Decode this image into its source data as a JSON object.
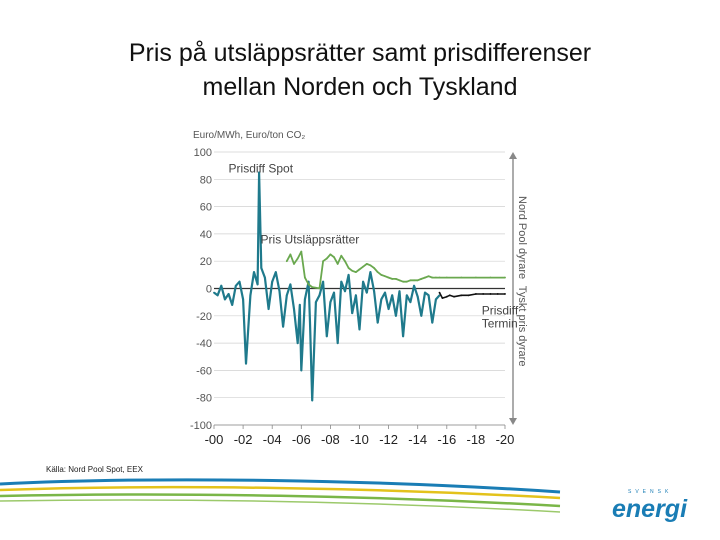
{
  "slide": {
    "title_line1": "Pris på utsläppsrätter samt prisdifferenser",
    "title_line2": "mellan Norden och Tyskland",
    "source": "Källa: Nord Pool Spot, EEX",
    "logo_top": "SVENSK",
    "logo_bottom": "energi"
  },
  "chart_data": {
    "type": "line",
    "ylabel": "Euro/MWh, Euro/ton CO₂",
    "ylim": [
      -100,
      100
    ],
    "xlim": [
      0,
      20
    ],
    "yticks": [
      100,
      80,
      60,
      40,
      20,
      0,
      -20,
      -40,
      -60,
      -80,
      -100
    ],
    "xticks": [
      "-00",
      "-02",
      "-04",
      "-06",
      "-08",
      "-10",
      "-12",
      "-14",
      "-16",
      "-18",
      "-20"
    ],
    "right_label_top": "Nord Pool dyrare",
    "right_label_bottom": "Tyskt pris dyrare",
    "grid": true,
    "colors": {
      "spot": "#1f7a8c",
      "co2": "#6aa84f",
      "termin": "#111111",
      "grid": "#d0d0d0",
      "zero": "#333333",
      "axis": "#888888"
    },
    "series": [
      {
        "name": "Prisdiff Spot",
        "label_year": 1.0,
        "label_value": 85,
        "x": [
          0.0,
          0.25,
          0.5,
          0.75,
          1.0,
          1.25,
          1.5,
          1.75,
          2.0,
          2.2,
          2.5,
          2.75,
          3.0,
          3.1,
          3.25,
          3.5,
          3.75,
          4.0,
          4.25,
          4.5,
          4.75,
          5.0,
          5.25,
          5.5,
          5.75,
          5.9,
          6.0,
          6.25,
          6.5,
          6.6,
          6.75,
          7.0,
          7.25,
          7.5,
          7.75,
          8.0,
          8.25,
          8.5,
          8.75,
          9.0,
          9.25,
          9.5,
          9.75,
          10.0,
          10.25,
          10.5,
          10.75,
          11.0,
          11.25,
          11.5,
          11.75,
          12.0,
          12.25,
          12.5,
          12.75,
          13.0,
          13.25,
          13.5,
          13.75,
          14.0,
          14.25,
          14.5,
          14.75,
          15.0,
          15.25,
          15.5
        ],
        "values": [
          -3,
          -5,
          2,
          -8,
          -4,
          -12,
          2,
          5,
          -8,
          -55,
          -5,
          12,
          3,
          85,
          15,
          8,
          -15,
          5,
          12,
          -2,
          -28,
          -5,
          3,
          -15,
          -40,
          -12,
          -60,
          -8,
          5,
          -25,
          -82,
          -10,
          -5,
          5,
          -35,
          -10,
          -3,
          -40,
          5,
          -2,
          10,
          -18,
          -5,
          -30,
          5,
          -3,
          12,
          -2,
          -25,
          -8,
          -3,
          -15,
          -5,
          -20,
          -2,
          -35,
          -5,
          -10,
          2,
          -6,
          -20,
          -3,
          -5,
          -25,
          -8,
          -5
        ]
      },
      {
        "name": "Pris Utsläppsrätter",
        "label_year": 3.2,
        "label_value": 33,
        "x": [
          5.0,
          5.25,
          5.5,
          5.75,
          6.0,
          6.25,
          6.5,
          6.75,
          7.0,
          7.25,
          7.5,
          7.75,
          8.0,
          8.25,
          8.5,
          8.75,
          9.0,
          9.25,
          9.5,
          9.75,
          10.0,
          10.25,
          10.5,
          10.75,
          11.0,
          11.25,
          11.5,
          11.75,
          12.0,
          12.25,
          12.5,
          12.75,
          13.0,
          13.25,
          13.5,
          13.75,
          14.0,
          14.25,
          14.5,
          14.75,
          15.0,
          15.25,
          15.5,
          16.0,
          17.0,
          18.0,
          19.0,
          20.0
        ],
        "values": [
          20,
          25,
          18,
          22,
          27,
          8,
          3,
          1,
          0.5,
          0.1,
          20,
          22,
          25,
          23,
          18,
          24,
          20,
          15,
          13,
          12,
          14,
          16,
          18,
          17,
          15,
          12,
          10,
          9,
          8,
          7,
          7,
          6,
          5,
          5,
          6,
          6,
          6,
          7,
          8,
          9,
          8,
          8,
          8,
          8,
          8,
          8,
          8,
          8
        ]
      },
      {
        "name": "Prisdiff Termin",
        "label_year": 18.4,
        "label_value": -19,
        "x": [
          15.5,
          15.7,
          16.0,
          16.2,
          16.5,
          17.0,
          17.5,
          18.0,
          18.5,
          19.0,
          19.5,
          20.0
        ],
        "values": [
          -3,
          -7,
          -6,
          -5,
          -6,
          -5,
          -5,
          -4,
          -4,
          -4,
          -4,
          -4
        ]
      }
    ],
    "annotations": [
      "Prisdiff Spot",
      "Pris Utsläppsrätter",
      "Prisdiff Termin"
    ]
  }
}
